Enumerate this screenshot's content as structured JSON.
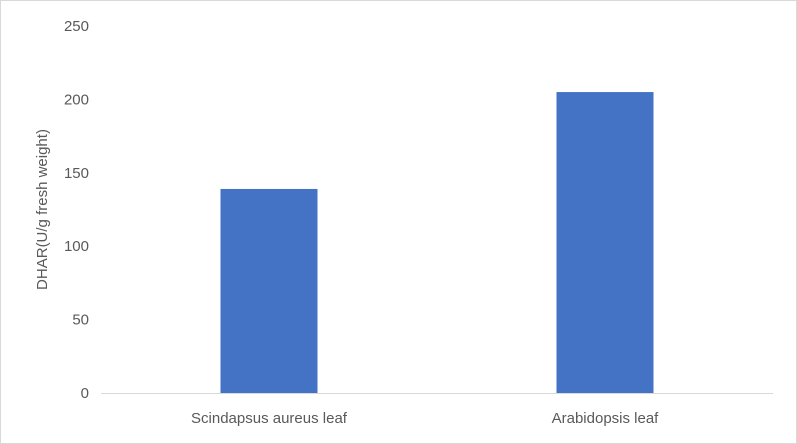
{
  "chart_data": {
    "type": "bar",
    "title": "",
    "xlabel": "",
    "ylabel": "DHAR(U/g fresh weight)",
    "categories": [
      "Scindapsus aureus leaf",
      "Arabidopsis leaf"
    ],
    "values": [
      139,
      205
    ],
    "ylim": [
      0,
      250
    ],
    "yticks": [
      0,
      50,
      100,
      150,
      200,
      250
    ],
    "grid": false,
    "legend": "none",
    "colors": {
      "bar": "#4472C4",
      "axis": "#d9d9d9",
      "text": "#595959"
    }
  }
}
